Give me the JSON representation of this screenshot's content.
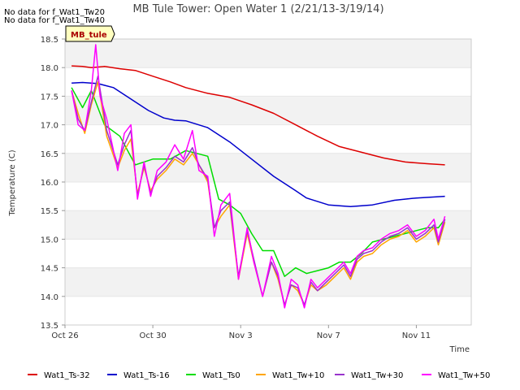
{
  "notes": [
    "No data for f_Wat1_Tw20",
    "No data for f_Wat1_Tw40"
  ],
  "site_tag": "MB_tule",
  "chart_data": {
    "type": "line",
    "title": "MB Tule Tower: Open Water 1 (2/21/13-3/19/14)",
    "xlabel": "Time",
    "ylabel": "Temperature (C)",
    "ylim": [
      13.5,
      18.5
    ],
    "yticks": [
      "13.5",
      "14.0",
      "14.5",
      "15.0",
      "15.5",
      "16.0",
      "16.5",
      "17.0",
      "17.5",
      "18.0",
      "18.5"
    ],
    "xlim": [
      0,
      18.5
    ],
    "xticks": [
      {
        "day": 0,
        "label": "Oct 26"
      },
      {
        "day": 4,
        "label": "Oct 30"
      },
      {
        "day": 8,
        "label": "Nov 3"
      },
      {
        "day": 12,
        "label": "Nov 7"
      },
      {
        "day": 16,
        "label": "Nov 11"
      }
    ],
    "x_unit": "days since Oct 26",
    "grid": "alternating horizontal bands",
    "legend_position": "bottom",
    "series": [
      {
        "name": "Wat1_Ts-32",
        "color": "#dd0000",
        "x": [
          0.3,
          0.8,
          1.2,
          1.8,
          2.5,
          3.2,
          4.0,
          4.8,
          5.5,
          6.5,
          7.5,
          8.5,
          9.5,
          10.5,
          11.5,
          12.5,
          13.5,
          14.5,
          15.5,
          16.5,
          17.3
        ],
        "y": [
          18.03,
          18.02,
          18.0,
          18.02,
          17.98,
          17.95,
          17.85,
          17.75,
          17.65,
          17.55,
          17.48,
          17.35,
          17.2,
          17.0,
          16.8,
          16.62,
          16.52,
          16.42,
          16.35,
          16.32,
          16.3
        ]
      },
      {
        "name": "Wat1_Ts-16",
        "color": "#0000cc",
        "x": [
          0.3,
          0.8,
          1.5,
          2.2,
          3.0,
          3.8,
          4.5,
          5.0,
          5.5,
          6.5,
          7.5,
          8.5,
          9.5,
          10.5,
          11.0,
          12.0,
          13.0,
          14.0,
          15.0,
          16.0,
          17.3
        ],
        "y": [
          17.73,
          17.74,
          17.72,
          17.65,
          17.45,
          17.25,
          17.12,
          17.08,
          17.07,
          16.95,
          16.7,
          16.4,
          16.1,
          15.85,
          15.72,
          15.6,
          15.57,
          15.6,
          15.68,
          15.72,
          15.75
        ]
      },
      {
        "name": "Wat1_Ts0",
        "color": "#00dd00",
        "x": [
          0.3,
          0.8,
          1.2,
          1.8,
          2.5,
          3.2,
          4.0,
          4.8,
          5.5,
          6.0,
          6.5,
          7.0,
          7.5,
          8.0,
          8.5,
          9.0,
          9.5,
          10.0,
          10.5,
          11.0,
          11.5,
          12.0,
          12.5,
          13.0,
          13.5,
          14.0,
          14.5,
          15.0,
          15.5,
          16.0,
          16.5,
          17.0,
          17.3
        ],
        "y": [
          17.65,
          17.3,
          17.6,
          17.0,
          16.8,
          16.3,
          16.4,
          16.4,
          16.55,
          16.5,
          16.45,
          15.7,
          15.6,
          15.45,
          15.1,
          14.8,
          14.8,
          14.35,
          14.5,
          14.4,
          14.45,
          14.5,
          14.6,
          14.6,
          14.75,
          14.95,
          15.0,
          15.05,
          15.1,
          15.15,
          15.2,
          15.2,
          15.35
        ]
      },
      {
        "name": "Wat1_Tw+10",
        "color": "#ffa500",
        "x": [
          0.3,
          0.6,
          0.9,
          1.2,
          1.5,
          1.9,
          2.4,
          2.7,
          3.0,
          3.3,
          3.6,
          3.9,
          4.2,
          4.6,
          5.0,
          5.4,
          5.8,
          6.1,
          6.5,
          6.8,
          7.1,
          7.5,
          7.9,
          8.3,
          8.6,
          9.0,
          9.4,
          9.7,
          10.0,
          10.3,
          10.6,
          10.9,
          11.2,
          11.5,
          11.9,
          12.3,
          12.7,
          13.0,
          13.3,
          13.6,
          14.0,
          14.4,
          14.8,
          15.2,
          15.6,
          16.0,
          16.4,
          16.8,
          17.0,
          17.3
        ],
        "y": [
          17.6,
          17.2,
          16.85,
          17.35,
          17.75,
          16.8,
          16.25,
          16.55,
          16.75,
          15.8,
          16.25,
          15.85,
          16.05,
          16.2,
          16.4,
          16.3,
          16.5,
          16.3,
          16.0,
          15.2,
          15.4,
          15.6,
          14.3,
          15.1,
          14.6,
          14.0,
          14.6,
          14.3,
          13.85,
          14.2,
          14.1,
          13.85,
          14.2,
          14.1,
          14.2,
          14.35,
          14.5,
          14.3,
          14.6,
          14.7,
          14.75,
          14.9,
          15.0,
          15.05,
          15.15,
          14.95,
          15.05,
          15.2,
          14.9,
          15.3
        ]
      },
      {
        "name": "Wat1_Tw+30",
        "color": "#9933cc",
        "x": [
          0.3,
          0.6,
          0.9,
          1.2,
          1.5,
          1.9,
          2.4,
          2.7,
          3.0,
          3.3,
          3.6,
          3.9,
          4.2,
          4.6,
          5.0,
          5.4,
          5.8,
          6.1,
          6.5,
          6.8,
          7.1,
          7.5,
          7.9,
          8.3,
          8.6,
          9.0,
          9.4,
          9.7,
          10.0,
          10.3,
          10.6,
          10.9,
          11.2,
          11.5,
          11.9,
          12.3,
          12.7,
          13.0,
          13.3,
          13.6,
          14.0,
          14.4,
          14.8,
          15.2,
          15.6,
          16.0,
          16.4,
          16.8,
          17.0,
          17.3
        ],
        "y": [
          17.6,
          17.1,
          16.9,
          17.4,
          17.85,
          16.9,
          16.3,
          16.65,
          16.9,
          15.75,
          16.3,
          15.8,
          16.1,
          16.25,
          16.45,
          16.35,
          16.6,
          16.3,
          16.05,
          15.2,
          15.5,
          15.65,
          14.35,
          15.15,
          14.65,
          14.0,
          14.6,
          14.35,
          13.85,
          14.2,
          14.15,
          13.85,
          14.25,
          14.1,
          14.25,
          14.4,
          14.55,
          14.35,
          14.65,
          14.75,
          14.8,
          14.95,
          15.05,
          15.1,
          15.2,
          15.0,
          15.1,
          15.25,
          14.95,
          15.35
        ]
      },
      {
        "name": "Wat1_Tw+50",
        "color": "#ff00ff",
        "x": [
          0.3,
          0.6,
          0.9,
          1.2,
          1.4,
          1.6,
          1.9,
          2.4,
          2.7,
          3.0,
          3.3,
          3.6,
          3.9,
          4.2,
          4.6,
          5.0,
          5.4,
          5.8,
          6.1,
          6.5,
          6.8,
          7.1,
          7.5,
          7.9,
          8.3,
          8.6,
          9.0,
          9.4,
          9.7,
          10.0,
          10.3,
          10.6,
          10.9,
          11.2,
          11.5,
          11.9,
          12.3,
          12.7,
          13.0,
          13.3,
          13.6,
          14.0,
          14.4,
          14.8,
          15.2,
          15.6,
          16.0,
          16.4,
          16.8,
          17.0,
          17.3
        ],
        "y": [
          17.6,
          17.0,
          16.9,
          17.6,
          18.4,
          17.5,
          17.1,
          16.2,
          16.85,
          17.0,
          15.7,
          16.35,
          15.75,
          16.2,
          16.35,
          16.65,
          16.4,
          16.9,
          16.2,
          16.1,
          15.05,
          15.6,
          15.8,
          14.3,
          15.2,
          14.6,
          14.0,
          14.7,
          14.4,
          13.8,
          14.3,
          14.2,
          13.8,
          14.3,
          14.15,
          14.3,
          14.45,
          14.6,
          14.4,
          14.7,
          14.8,
          14.85,
          15.0,
          15.1,
          15.15,
          15.25,
          15.05,
          15.15,
          15.35,
          15.0,
          15.4
        ]
      }
    ]
  }
}
